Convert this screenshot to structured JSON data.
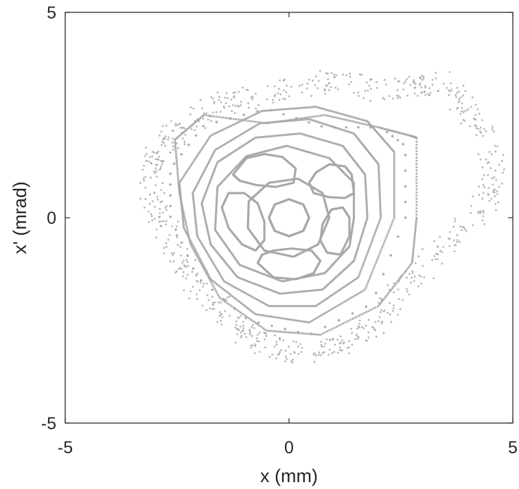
{
  "chart_data": {
    "type": "scatter",
    "title": "",
    "xlabel": "x (mm)",
    "ylabel": "x' (mrad)",
    "xlim": [
      -5,
      5
    ],
    "ylim": [
      -5,
      5
    ],
    "x_ticks": [
      "-5",
      "0",
      "5"
    ],
    "y_ticks": [
      "5",
      "0",
      "-5"
    ],
    "grid": false,
    "marker_color": "#a8a8a8",
    "series": [
      {
        "kind": "closed-orbit",
        "points": [
          [
            0.45,
            0.0
          ],
          [
            0.32,
            0.32
          ],
          [
            0.0,
            0.45
          ],
          [
            -0.32,
            0.32
          ],
          [
            -0.45,
            0.0
          ],
          [
            -0.32,
            -0.32
          ],
          [
            0.0,
            -0.45
          ],
          [
            0.32,
            -0.32
          ]
        ]
      },
      {
        "kind": "island",
        "points": [
          [
            1.45,
            0.6
          ],
          [
            1.4,
            1.05
          ],
          [
            1.25,
            1.25
          ],
          [
            0.9,
            1.3
          ],
          [
            0.6,
            1.1
          ],
          [
            0.45,
            0.85
          ],
          [
            0.55,
            0.6
          ],
          [
            0.9,
            0.5
          ],
          [
            1.25,
            0.48
          ]
        ]
      },
      {
        "kind": "island",
        "points": [
          [
            -1.25,
            1.05
          ],
          [
            -0.95,
            1.45
          ],
          [
            -0.55,
            1.55
          ],
          [
            -0.15,
            1.48
          ],
          [
            0.15,
            1.2
          ],
          [
            0.1,
            0.85
          ],
          [
            -0.3,
            0.75
          ],
          [
            -0.75,
            0.8
          ],
          [
            -1.1,
            0.9
          ]
        ]
      },
      {
        "kind": "island",
        "points": [
          [
            -1.5,
            0.25
          ],
          [
            -1.35,
            -0.25
          ],
          [
            -1.05,
            -0.65
          ],
          [
            -0.75,
            -0.8
          ],
          [
            -0.55,
            -0.55
          ],
          [
            -0.55,
            -0.1
          ],
          [
            -0.7,
            0.35
          ],
          [
            -1.0,
            0.6
          ],
          [
            -1.35,
            0.6
          ]
        ]
      },
      {
        "kind": "island",
        "points": [
          [
            -0.7,
            -1.1
          ],
          [
            -0.35,
            -1.45
          ],
          [
            0.15,
            -1.5
          ],
          [
            0.55,
            -1.35
          ],
          [
            0.7,
            -1.05
          ],
          [
            0.5,
            -0.8
          ],
          [
            0.05,
            -0.75
          ],
          [
            -0.35,
            -0.8
          ],
          [
            -0.6,
            -0.9
          ]
        ]
      },
      {
        "kind": "island",
        "points": [
          [
            1.15,
            -0.9
          ],
          [
            1.35,
            -0.45
          ],
          [
            1.35,
            0.0
          ],
          [
            1.2,
            0.25
          ],
          [
            0.95,
            0.2
          ],
          [
            0.75,
            -0.15
          ],
          [
            0.7,
            -0.55
          ],
          [
            0.85,
            -0.85
          ]
        ]
      },
      {
        "kind": "closed-orbit",
        "points": [
          [
            0.9,
            0.0
          ],
          [
            0.75,
            0.6
          ],
          [
            0.2,
            0.95
          ],
          [
            -0.45,
            0.85
          ],
          [
            -0.9,
            0.4
          ],
          [
            -0.92,
            -0.25
          ],
          [
            -0.55,
            -0.8
          ],
          [
            0.1,
            -0.95
          ],
          [
            0.65,
            -0.65
          ]
        ]
      },
      {
        "kind": "closed-orbit",
        "points": [
          [
            1.45,
            0.0
          ],
          [
            1.45,
            0.85
          ],
          [
            0.9,
            1.45
          ],
          [
            -0.05,
            1.75
          ],
          [
            -0.95,
            1.5
          ],
          [
            -1.6,
            0.75
          ],
          [
            -1.65,
            -0.3
          ],
          [
            -1.1,
            -1.15
          ],
          [
            -0.15,
            -1.55
          ],
          [
            0.8,
            -1.35
          ],
          [
            1.35,
            -0.7
          ]
        ]
      },
      {
        "kind": "closed-orbit",
        "points": [
          [
            1.75,
            0.0
          ],
          [
            1.7,
            1.05
          ],
          [
            1.2,
            1.75
          ],
          [
            0.25,
            2.05
          ],
          [
            -0.75,
            1.95
          ],
          [
            -1.6,
            1.35
          ],
          [
            -1.95,
            0.35
          ],
          [
            -1.75,
            -0.65
          ],
          [
            -1.15,
            -1.45
          ],
          [
            -0.2,
            -1.85
          ],
          [
            0.75,
            -1.75
          ],
          [
            1.45,
            -1.05
          ]
        ]
      },
      {
        "kind": "closed-orbit",
        "points": [
          [
            2.05,
            0.0
          ],
          [
            2.0,
            1.3
          ],
          [
            1.45,
            2.05
          ],
          [
            0.45,
            2.4
          ],
          [
            -0.65,
            2.3
          ],
          [
            -1.65,
            1.65
          ],
          [
            -2.15,
            0.6
          ],
          [
            -2.05,
            -0.45
          ],
          [
            -1.45,
            -1.55
          ],
          [
            -0.45,
            -2.15
          ],
          [
            0.6,
            -2.15
          ],
          [
            1.55,
            -1.45
          ]
        ]
      },
      {
        "kind": "closed-orbit",
        "points": [
          [
            2.35,
            0.0
          ],
          [
            2.35,
            1.6
          ],
          [
            1.75,
            2.35
          ],
          [
            0.6,
            2.7
          ],
          [
            -0.6,
            2.6
          ],
          [
            -1.75,
            2.0
          ],
          [
            -2.45,
            0.85
          ],
          [
            -2.35,
            -0.25
          ],
          [
            -1.75,
            -1.5
          ],
          [
            -0.75,
            -2.35
          ],
          [
            0.45,
            -2.55
          ],
          [
            1.7,
            -1.75
          ]
        ]
      },
      {
        "kind": "dashed-orbit",
        "points": [
          [
            2.6,
            0.0
          ],
          [
            2.6,
            1.75
          ],
          [
            2.05,
            2.2
          ],
          [
            0.8,
            2.2
          ],
          [
            -0.5,
            2.65
          ],
          [
            -1.9,
            2.25
          ],
          [
            -2.65,
            1.2
          ],
          [
            -2.65,
            0.0
          ],
          [
            -2.05,
            -1.45
          ],
          [
            -0.9,
            -2.5
          ],
          [
            0.45,
            -2.85
          ],
          [
            1.85,
            -2.1
          ]
        ]
      },
      {
        "kind": "closed-orbit",
        "points": [
          [
            2.85,
            0.0
          ],
          [
            2.85,
            1.95
          ],
          [
            2.7,
            2.0
          ],
          [
            2.0,
            2.2
          ],
          [
            0.8,
            2.5
          ],
          [
            -0.5,
            2.3
          ],
          [
            -1.9,
            2.5
          ],
          [
            -2.55,
            1.9
          ],
          [
            -2.45,
            0.6
          ],
          [
            -2.2,
            -0.65
          ],
          [
            -1.55,
            -1.95
          ],
          [
            -0.5,
            -2.75
          ],
          [
            0.7,
            -2.85
          ],
          [
            2.0,
            -2.15
          ],
          [
            2.75,
            -1.1
          ]
        ]
      },
      {
        "kind": "chaotic-band",
        "points": [
          [
            -3.0,
            1.4
          ],
          [
            -2.8,
            1.8
          ],
          [
            -2.3,
            2.3
          ],
          [
            -1.5,
            2.75
          ],
          [
            -0.6,
            3.0
          ],
          [
            0.3,
            3.15
          ],
          [
            1.1,
            3.35
          ],
          [
            2.0,
            3.1
          ],
          [
            2.8,
            3.2
          ],
          [
            3.5,
            3.3
          ],
          [
            4.0,
            2.6
          ],
          [
            4.45,
            1.9
          ],
          [
            4.6,
            0.9
          ],
          [
            4.25,
            0.1
          ],
          [
            3.6,
            -0.6
          ],
          [
            2.9,
            -1.3
          ],
          [
            2.35,
            -2.0
          ],
          [
            1.8,
            -2.75
          ],
          [
            1.1,
            -3.1
          ],
          [
            0.2,
            -3.3
          ],
          [
            -0.5,
            -3.1
          ],
          [
            -1.2,
            -2.6
          ],
          [
            -1.9,
            -1.8
          ],
          [
            -2.4,
            -1.1
          ],
          [
            -2.8,
            -0.2
          ],
          [
            -3.1,
            0.6
          ]
        ]
      }
    ]
  }
}
